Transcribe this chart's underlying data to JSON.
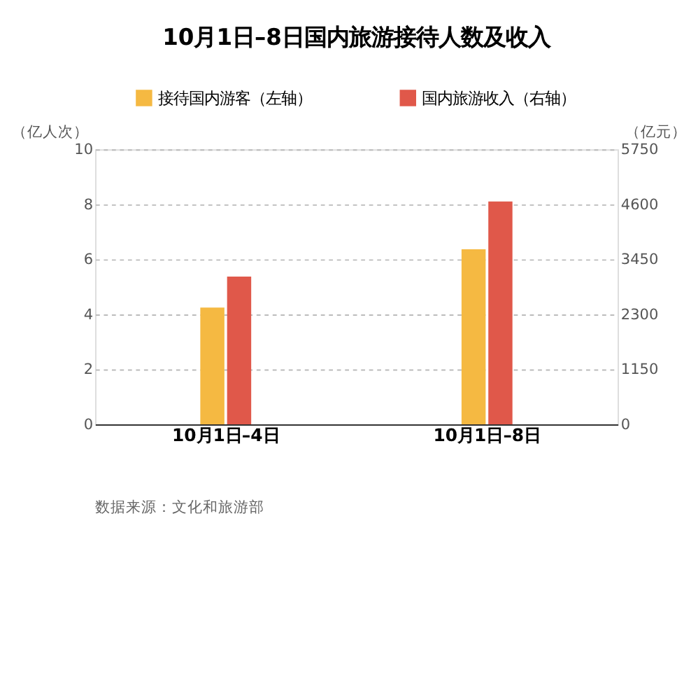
{
  "chart_data": {
    "type": "bar",
    "title": "10月1日–8日国内旅游接待人数及收入",
    "categories": [
      "10月1日–4日",
      "10月1日–8日"
    ],
    "series": [
      {
        "name": "接待国内游客（左轴）",
        "color": "#f5b942",
        "values": [
          4.25,
          6.37
        ]
      },
      {
        "name": "国内旅游收入（右轴）",
        "color": "#e0584a",
        "values": [
          3090,
          4660
        ],
        "axis": "y2"
      }
    ],
    "ylabel": "（亿人次）",
    "y2label": "（亿元）",
    "ylim": [
      0,
      10
    ],
    "yticks": [
      0,
      2,
      4,
      6,
      8,
      10
    ],
    "y2lim": [
      0,
      5750
    ],
    "y2ticks": [
      0,
      1150,
      2300,
      3450,
      4600,
      5750
    ],
    "grid": "y",
    "legend": "top",
    "annotations": [
      "数据来源：文化和旅游部"
    ]
  }
}
